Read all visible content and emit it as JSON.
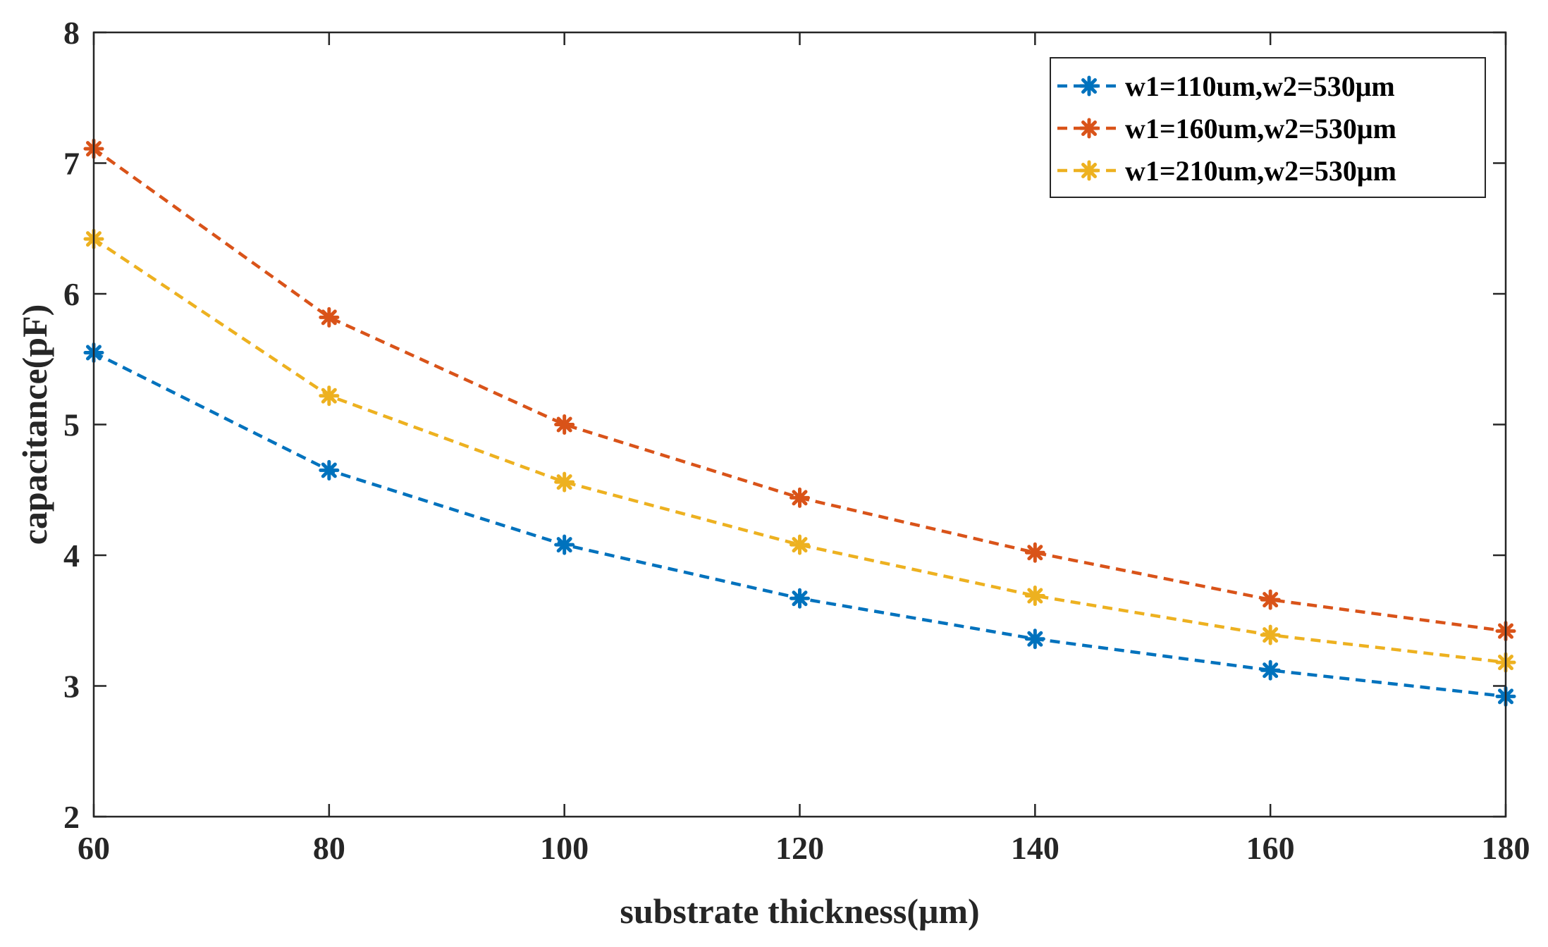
{
  "chart_data": {
    "type": "line",
    "title": "",
    "xlabel": "substrate thickness(μm)",
    "ylabel": "capacitance(pF)",
    "xlim": [
      60,
      180
    ],
    "ylim": [
      2,
      8
    ],
    "x": [
      60,
      80,
      100,
      120,
      140,
      160,
      180
    ],
    "xticks": [
      60,
      80,
      100,
      120,
      140,
      160,
      180
    ],
    "yticks": [
      2,
      3,
      4,
      5,
      6,
      7,
      8
    ],
    "xtick_labels": [
      "60",
      "80",
      "100",
      "120",
      "140",
      "160",
      "180"
    ],
    "ytick_labels": [
      "2",
      "3",
      "4",
      "5",
      "6",
      "7",
      "8"
    ],
    "grid": false,
    "legend_position": "top-right",
    "marker": "asterisk",
    "line_style": "dashed",
    "series": [
      {
        "name": "w1=110um,w2=530μm",
        "color": "#0072BD",
        "values": [
          5.55,
          4.65,
          4.08,
          3.67,
          3.36,
          3.12,
          2.92
        ]
      },
      {
        "name": "w1=160um,w2=530μm",
        "color": "#D95319",
        "values": [
          7.11,
          5.82,
          5.0,
          4.44,
          4.02,
          3.66,
          3.42
        ]
      },
      {
        "name": "w1=210um,w2=530μm",
        "color": "#EDB120",
        "values": [
          6.42,
          5.22,
          4.56,
          4.08,
          3.69,
          3.39,
          3.18
        ]
      }
    ]
  }
}
